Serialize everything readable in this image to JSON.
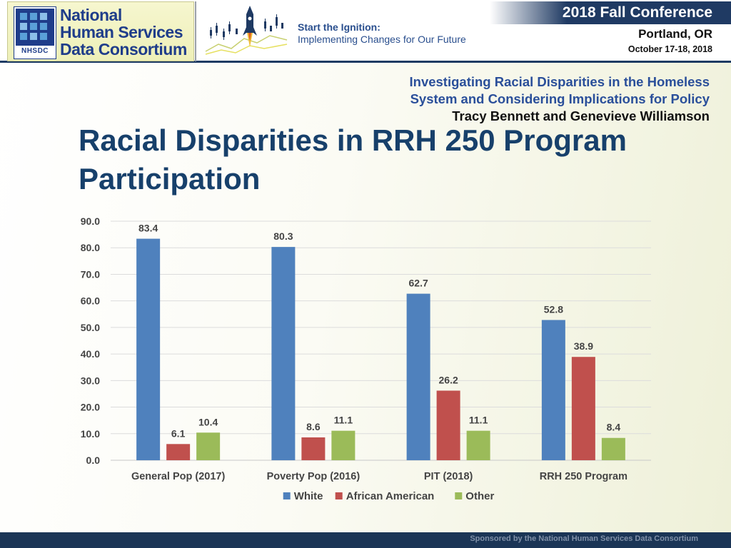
{
  "header": {
    "logo_lines": [
      "National",
      "Human Services",
      "Data Consortium"
    ],
    "logo_tag": "NHSDC",
    "tagline_line1": "Start the Ignition:",
    "tagline_line2": "Implementing Changes for Our Future",
    "conference": "2018 Fall Conference",
    "city": "Portland, OR",
    "dates": "October 17-18, 2018"
  },
  "slide": {
    "subtitle_line1": "Investigating Racial Disparities in the Homeless",
    "subtitle_line2": "System and Considering Implications for Policy",
    "authors": "Tracy Bennett and Genevieve Williamson",
    "title": "Racial Disparities in RRH 250 Program Participation"
  },
  "footer": {
    "sponsor": "Sponsored by the National Human Services Data Consortium"
  },
  "chart_data": {
    "type": "bar",
    "title": "",
    "xlabel": "",
    "ylabel": "",
    "ylim": [
      0,
      90
    ],
    "yticks": [
      "0.0",
      "10.0",
      "20.0",
      "30.0",
      "40.0",
      "50.0",
      "60.0",
      "70.0",
      "80.0",
      "90.0"
    ],
    "grid": true,
    "legend_position": "bottom",
    "categories": [
      "General Pop (2017)",
      "Poverty Pop (2016)",
      "PIT (2018)",
      "RRH 250 Program"
    ],
    "series": [
      {
        "name": "White",
        "color": "#4f81bd",
        "values": [
          83.4,
          80.3,
          62.7,
          52.8
        ]
      },
      {
        "name": "African American",
        "color": "#c0504d",
        "values": [
          6.1,
          8.6,
          26.2,
          38.9
        ]
      },
      {
        "name": "Other",
        "color": "#9bbb59",
        "values": [
          10.4,
          11.1,
          11.1,
          8.4
        ]
      }
    ]
  }
}
